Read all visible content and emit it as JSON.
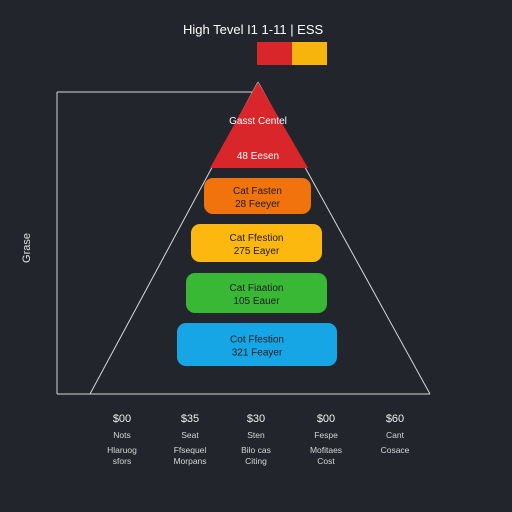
{
  "chart_data": {
    "type": "bar",
    "title": "High Tevel I1 1-11 | ESS",
    "ylabel": "Grase",
    "legend_colors": [
      "#d8262a",
      "#f6b40d"
    ],
    "tiers": [
      {
        "name": "Gasst Centel",
        "value_label": "48 Eesen",
        "color": "#d8262a"
      },
      {
        "name": "Cat Fasten",
        "value_label": "28 Feeyer",
        "color": "#f0730d"
      },
      {
        "name": "Cat Ffestion",
        "value_label": "275 Eayer",
        "color": "#fcb80e"
      },
      {
        "name": "Cat Fiaation",
        "value_label": "105 Eauer",
        "color": "#38b834"
      },
      {
        "name": "Cot Ffestion",
        "value_label": "321 Feayer",
        "color": "#16a6e6"
      }
    ],
    "categories": [
      {
        "price": "$00",
        "line1": "Nots",
        "line2": "Hlaruog",
        "line3": "sfors"
      },
      {
        "price": "$35",
        "line1": "Seat",
        "line2": "Ffsequel",
        "line3": "Morpans"
      },
      {
        "price": "$30",
        "line1": "Sten",
        "line2": "Bilo cas",
        "line3": "Citing"
      },
      {
        "price": "$00",
        "line1": "Fespe",
        "line2": "Mofitaes",
        "line3": "Cost"
      },
      {
        "price": "$60",
        "line1": "Cant",
        "line2": "Cosace",
        "line3": ""
      }
    ]
  }
}
